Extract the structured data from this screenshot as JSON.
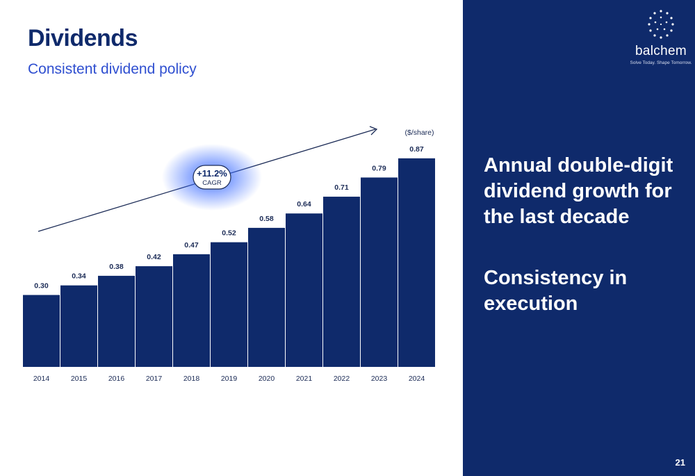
{
  "slide": {
    "title": "Dividends",
    "subtitle": "Consistent dividend policy",
    "page_number": "21"
  },
  "brand": {
    "name": "balchem",
    "tagline": "Solve Today. Shape Tomorrow.",
    "logo_icon": "dotted-circle-logo-icon",
    "primary_color": "#0f2a6b",
    "accent_color": "#2f4fd0"
  },
  "panel": {
    "message_1": "Annual double-digit dividend growth for the last decade",
    "message_2": "Consistency in execution"
  },
  "chart_data": {
    "type": "bar",
    "categories": [
      "2014",
      "2015",
      "2016",
      "2017",
      "2018",
      "2019",
      "2020",
      "2021",
      "2022",
      "2023",
      "2024"
    ],
    "values": [
      0.3,
      0.34,
      0.38,
      0.42,
      0.47,
      0.52,
      0.58,
      0.64,
      0.71,
      0.79,
      0.87
    ],
    "data_labels": [
      "0.30",
      "0.34",
      "0.38",
      "0.42",
      "0.47",
      "0.52",
      "0.58",
      "0.64",
      "0.71",
      "0.79",
      "0.87"
    ],
    "unit_label": "($/share)",
    "ylim": [
      0,
      0.9
    ],
    "grid": false,
    "bar_color": "#0f2a6b",
    "annotation": {
      "value": "+11.2%",
      "label": "CAGR",
      "glow_color": "#3c6cff"
    },
    "trend_arrow": true
  }
}
